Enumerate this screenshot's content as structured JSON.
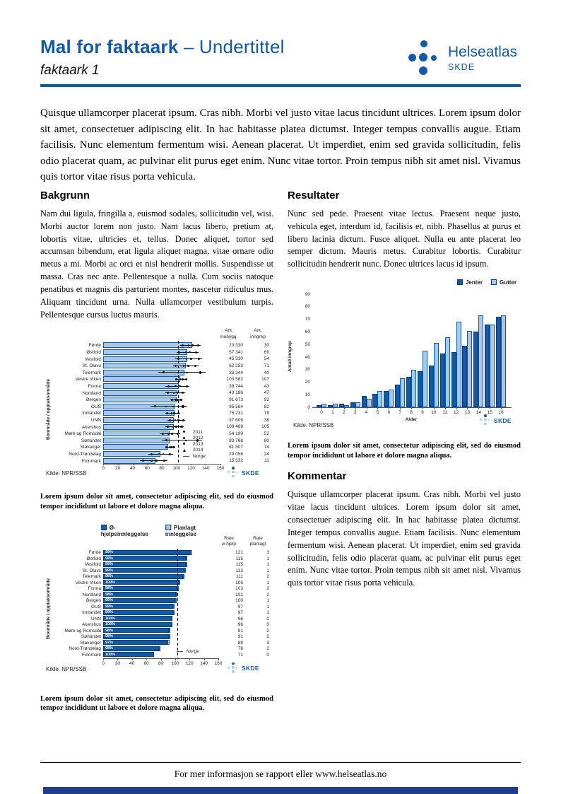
{
  "header": {
    "title": "Mal for faktaark",
    "subtitle": " – Undertittel",
    "doc_label": "faktaark 1",
    "logo": {
      "name": "Helseatlas",
      "sub": "SKDE"
    }
  },
  "intro": "Quisque ullamcorper placerat ipsum. Cras nibh. Morbi vel justo vitae lacus tincidunt ultrices. Lorem ipsum dolor sit amet, consectetuer adipiscing elit. In hac habitasse platea dictumst. Integer tempus convallis augue. Etiam facilisis. Nunc elementum fermentum wisi. Aenean placerat. Ut imperdiet, enim sed gravida sollicitudin, felis odio placerat quam, ac pulvinar elit purus eget enim. Nunc vitae tortor. Proin tempus nibh sit amet nisl. Vivamus quis tortor vitae risus porta vehicula.",
  "sections": {
    "bakgrunn": {
      "heading": "Bakgrunn",
      "body": "Nam dui ligula, fringilla a, euismod sodales, sollicitudin vel, wisi. Morbi auctor lorem non justo. Nam lacus libero, pretium at, lobortis vitae, ultricies et, tellus. Donec aliquet, tortor sed accumsan bibendum, erat ligula aliquet magna, vitae ornare odio metus a mi. Morbi ac orci et nisl hendrerit mollis. Suspendisse ut massa. Cras nec ante. Pellentesque a nulla. Cum sociis natoque penatibus et magnis dis parturient montes, nascetur ridiculus mus. Aliquam tincidunt urna. Nulla ullamcorper vestibulum turpis. Pellentesque cursus luctus mauris."
    },
    "resultater": {
      "heading": "Resultater",
      "body": "Nunc sed pede. Praesent vitae lectus. Praesent neque justo, vehicula eget, interdum id, facilisis et, nibh. Phasellus at purus et libero lacinia dictum. Fusce aliquet. Nulla eu ante placerat leo semper dictum. Mauris metus. Curabitur lobortis. Curabitur sollicitudin hendrerit nunc. Donec ultrices lacus id ipsum."
    },
    "kommentar": {
      "heading": "Kommentar",
      "body": "Quisque ullamcorper placerat ipsum. Cras nibh. Morbi vel justo vitae lacus tincidunt ultrices. Lorem ipsum dolor sit amet, consectetuer adipiscing elit. In hac habitasse platea dictumst. Integer tempus convallis augue. Etiam facilisis. Nunc elementum fermentum wisi. Aenean placerat. Ut imperdiet, enim sed gravida sollicitudin, felis odio placerat quam, ac pulvinar elit purus eget enim. Nunc vitae tortor. Proin tempus nibh sit amet nisl. Vivamus quis tortor vitae risus porta vehicula."
    }
  },
  "figure_caption": "Lorem ipsum dolor sit amet, consectetur adipiscing elit, sed do eiusmod tempor incididunt ut labore et dolore magna aliqua.",
  "footer": {
    "text": "For mer informasjon se rapport eller www.helseatlas.no"
  },
  "colors": {
    "brand_blue": "#1359a5",
    "bar_dark": "#1259a6",
    "bar_light": "#a9c7e8",
    "footer_bar": "#1f3d8f",
    "marker_black": "#111111"
  },
  "chart_data": [
    {
      "type": "bar",
      "orientation": "horizontal",
      "ylabel": "Boområde / opptaksområde",
      "xlim": [
        0,
        160
      ],
      "xticks": [
        0,
        20,
        40,
        60,
        80,
        100,
        120,
        140,
        160
      ],
      "categories": [
        "Førde",
        "Østfold",
        "Vestfold",
        "St. Olavs",
        "Telemark",
        "Vestre Viken",
        "Fonna",
        "Nordland",
        "Bergen",
        "OUS",
        "Innlandet",
        "UNN",
        "Akershus",
        "Møre og Romsdal",
        "Sørlandet",
        "Stavanger",
        "Nord-Trøndelag",
        "Finnmark"
      ],
      "values": [
        121,
        115,
        115,
        113,
        111,
        105,
        103,
        101,
        100,
        97,
        97,
        96,
        96,
        91,
        91,
        89,
        78,
        71
      ],
      "whiskers": [
        [
          105,
          133
        ],
        [
          100,
          130
        ],
        [
          98,
          135
        ],
        [
          95,
          130
        ],
        [
          75,
          140
        ],
        [
          98,
          115
        ],
        [
          85,
          118
        ],
        [
          85,
          112
        ],
        [
          92,
          108
        ],
        [
          65,
          115
        ],
        [
          85,
          105
        ],
        [
          88,
          112
        ],
        [
          85,
          110
        ],
        [
          78,
          105
        ],
        [
          80,
          135
        ],
        [
          85,
          98
        ],
        [
          62,
          95
        ],
        [
          50,
          88
        ]
      ],
      "norge_value": 102,
      "legend": [
        {
          "label": "2011",
          "marker": "dot"
        },
        {
          "label": "2012",
          "marker": "dot"
        },
        {
          "label": "2013",
          "marker": "dot"
        },
        {
          "label": "2014",
          "marker": "triangle"
        },
        {
          "label": "Norge",
          "marker": "dash"
        }
      ],
      "table": {
        "headers": [
          [
            "Ant.",
            "innbygg."
          ],
          [
            "Ant.",
            "inngrep"
          ]
        ],
        "rows": [
          [
            "23 330",
            "30"
          ],
          [
            "57 341",
            "69"
          ],
          [
            "45 330",
            "54"
          ],
          [
            "62 253",
            "71"
          ],
          [
            "33 344",
            "40"
          ],
          [
            "100 582",
            "107"
          ],
          [
            "39 744",
            "43"
          ],
          [
            "43 186",
            "47"
          ],
          [
            "91 673",
            "92"
          ],
          [
            "95 564",
            "82"
          ],
          [
            "75 231",
            "78"
          ],
          [
            "37 609",
            "38"
          ],
          [
            "108 469",
            "105"
          ],
          [
            "54 199",
            "52"
          ],
          [
            "83 768",
            "80"
          ],
          [
            "81 507",
            "74"
          ],
          [
            "29 056",
            "24"
          ],
          [
            "15 332",
            "11"
          ]
        ]
      },
      "source": "Kilde: NPR/SSB"
    },
    {
      "type": "bar",
      "orientation": "horizontal",
      "stacked": true,
      "ylabel": "Boområde / opptaksområde",
      "xlim": [
        0,
        160
      ],
      "xticks": [
        0,
        20,
        40,
        60,
        80,
        100,
        120,
        140,
        160
      ],
      "categories": [
        "Førde",
        "Østfold",
        "Vestfold",
        "St. Olavs",
        "Telemark",
        "Vestre Viken",
        "Fonna",
        "Nordland",
        "Bergen",
        "OUS",
        "Innlandet",
        "UNN",
        "Akershus",
        "Møre og Romsdal",
        "Sørlandet",
        "Stavanger",
        "Nord-Trøndelag",
        "Finnmark"
      ],
      "series": [
        {
          "name": "Ø-hjelpsinnleggelse",
          "color_key": "dark",
          "values": [
            121,
            115,
            115,
            113,
            111,
            105,
            103,
            101,
            100,
            97,
            97,
            96,
            96,
            91,
            91,
            89,
            78,
            71
          ]
        },
        {
          "name": "Planlagt innleggelse",
          "color_key": "light",
          "values": [
            3,
            1,
            1,
            1,
            2,
            1,
            2,
            2,
            1,
            1,
            1,
            0,
            0,
            2,
            2,
            3,
            2,
            0
          ]
        }
      ],
      "bar_labels": [
        "99%",
        "99%",
        "99%",
        "99%",
        "98%",
        "100%",
        "98%",
        "98%",
        "99%",
        "99%",
        "99%",
        "100%",
        "100%",
        "98%",
        "98%",
        "97%",
        "98%",
        "100%"
      ],
      "norge_value": 103,
      "norge_legend": "Norge",
      "table": {
        "headers": [
          [
            "Rate",
            "ø-hjelp"
          ],
          [
            "Rate",
            "planlagt"
          ]
        ],
        "rows": [
          [
            "121",
            "3"
          ],
          [
            "115",
            "1"
          ],
          [
            "115",
            "1"
          ],
          [
            "113",
            "1"
          ],
          [
            "111",
            "2"
          ],
          [
            "105",
            "1"
          ],
          [
            "103",
            "2"
          ],
          [
            "101",
            "2"
          ],
          [
            "100",
            "1"
          ],
          [
            "97",
            "1"
          ],
          [
            "97",
            "1"
          ],
          [
            "96",
            "0"
          ],
          [
            "96",
            "0"
          ],
          [
            "91",
            "2"
          ],
          [
            "91",
            "2"
          ],
          [
            "89",
            "3"
          ],
          [
            "78",
            "2"
          ],
          [
            "71",
            "0"
          ]
        ]
      },
      "source": "Kilde: NPR/SSB"
    },
    {
      "type": "bar",
      "orientation": "vertical",
      "xlabel": "Alder",
      "ylabel": "Antall inngrep",
      "ylim": [
        0,
        90
      ],
      "yticks": [
        0,
        10,
        20,
        30,
        40,
        50,
        60,
        70,
        80,
        90
      ],
      "categories": [
        "0",
        "1",
        "2",
        "3",
        "4",
        "5",
        "6",
        "7",
        "8",
        "9",
        "10",
        "11",
        "12",
        "13",
        "14",
        "15",
        "16"
      ],
      "series": [
        {
          "name": "Jenter",
          "color_key": "dark",
          "values": [
            2,
            2,
            3,
            4,
            9,
            11,
            13,
            18,
            24,
            29,
            33,
            43,
            44,
            49,
            60,
            66,
            72
          ]
        },
        {
          "name": "Gutter",
          "color_key": "light",
          "values": [
            3,
            3,
            2,
            4,
            7,
            13,
            14,
            23,
            30,
            45,
            51,
            56,
            68,
            61,
            73,
            66,
            73
          ]
        }
      ],
      "legend_position": "top-right",
      "source": "Kilde: NPR/SSB"
    }
  ]
}
